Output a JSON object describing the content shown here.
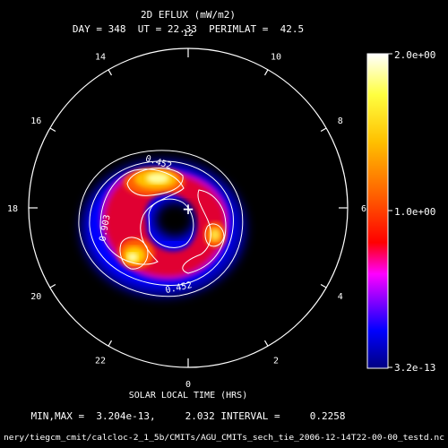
{
  "chart_data": {
    "type": "heatmap",
    "projection": "polar-dial",
    "title": "2D EFLUX (mW/m2)",
    "subtitle": "DAY = 348  UT = 22.33  PERIMLAT =  42.5",
    "xlabel": "SOLAR LOCAL TIME (HRS)",
    "hour_labels": [
      "12",
      "10",
      "8",
      "6",
      "4",
      "2",
      "0",
      "22",
      "20",
      "18",
      "16",
      "14"
    ],
    "hour_values": [
      12,
      10,
      8,
      6,
      4,
      2,
      0,
      22,
      20,
      18,
      16,
      14
    ],
    "contour_labels": [
      "0.452",
      "0.903",
      "0.452"
    ],
    "colorbar": {
      "max_label": "2.0e+00",
      "mid_label": "1.0e+00",
      "min_label": "3.2e-13",
      "min": 3.2e-13,
      "max": 2.0,
      "colors": [
        "#0000a0",
        "#0000ff",
        "#00d0ff",
        "#ff0000",
        "#ff8000",
        "#ffff00",
        "#ffffff"
      ]
    },
    "stats": "MIN,MAX =  3.204e-13,     2.032 INTERVAL =     0.2258",
    "footer_path": "nery/tiegcm_cmit/calcloc-2_1_5b/CMITs/AGU_CMITs_sech_tie_2006-12-14T22-00-00_testd.nc",
    "center_marker": "+"
  }
}
